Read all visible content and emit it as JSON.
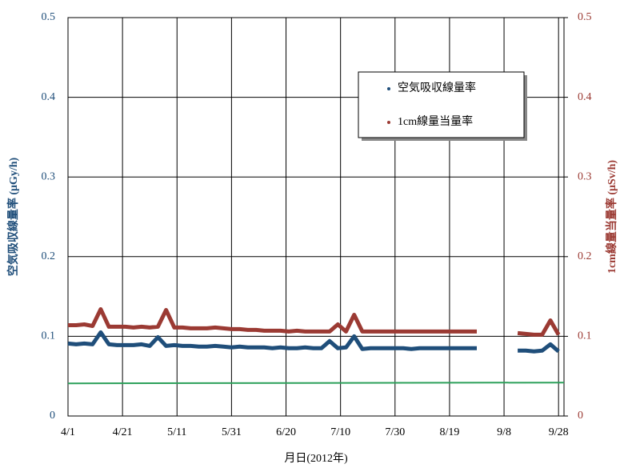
{
  "chart_data": {
    "type": "line",
    "xlabel": "月日(2012年)",
    "ylabel": "空気吸収線量率 (μGy/h)",
    "y2label": "1cm線量当量率 (μSv/h)",
    "x": [
      0,
      3,
      6,
      9,
      12,
      15,
      18,
      21,
      24,
      27,
      30,
      33,
      36,
      39,
      42,
      45,
      48,
      51,
      54,
      57,
      60,
      63,
      66,
      69,
      72,
      75,
      78,
      81,
      84,
      87,
      90,
      93,
      96,
      99,
      102,
      105,
      108,
      111,
      114,
      117,
      120,
      123,
      126,
      129,
      132,
      135,
      138,
      141,
      144,
      147,
      150,
      153,
      156,
      159,
      162,
      165,
      168,
      171,
      174,
      177,
      180
    ],
    "xlim": [
      0,
      182
    ],
    "xticks": [
      {
        "value": 0,
        "label": "4/1"
      },
      {
        "value": 20,
        "label": "4/21"
      },
      {
        "value": 40,
        "label": "5/11"
      },
      {
        "value": 60,
        "label": "5/31"
      },
      {
        "value": 80,
        "label": "6/20"
      },
      {
        "value": 100,
        "label": "7/10"
      },
      {
        "value": 120,
        "label": "7/30"
      },
      {
        "value": 140,
        "label": "8/19"
      },
      {
        "value": 160,
        "label": "9/8"
      },
      {
        "value": 180,
        "label": "9/28"
      }
    ],
    "ylim": [
      0,
      0.5
    ],
    "yticks": [
      0,
      0.1,
      0.2,
      0.3,
      0.4,
      0.5
    ],
    "y2lim": [
      0,
      0.5
    ],
    "y2ticks": [
      0,
      0.1,
      0.2,
      0.3,
      0.4,
      0.5
    ],
    "grid": true,
    "legend": "upper right",
    "series": [
      {
        "name": "空気吸収線量率",
        "color": "#1f4e7a",
        "values": [
          0.091,
          0.09,
          0.091,
          0.09,
          0.105,
          0.09,
          0.089,
          0.089,
          0.089,
          0.09,
          0.088,
          0.099,
          0.088,
          0.089,
          0.088,
          0.088,
          0.087,
          0.087,
          0.088,
          0.087,
          0.086,
          0.087,
          0.086,
          0.086,
          0.086,
          0.085,
          0.086,
          0.085,
          0.085,
          0.086,
          0.085,
          0.085,
          0.094,
          0.085,
          0.086,
          0.1,
          0.084,
          0.085,
          0.085,
          0.085,
          0.085,
          0.085,
          0.084,
          0.085,
          0.085,
          0.085,
          0.085,
          0.085,
          0.085,
          0.085,
          0.085,
          null,
          null,
          null,
          null,
          0.082,
          0.082,
          0.081,
          0.082,
          0.09,
          0.081
        ]
      },
      {
        "name": "1cm線量当量率",
        "color": "#9b3a33",
        "axis": "y2",
        "values": [
          0.114,
          0.114,
          0.115,
          0.113,
          0.134,
          0.112,
          0.112,
          0.112,
          0.111,
          0.112,
          0.111,
          0.112,
          0.133,
          0.111,
          0.111,
          0.11,
          0.11,
          0.11,
          0.111,
          0.11,
          0.109,
          0.109,
          0.108,
          0.108,
          0.107,
          0.107,
          0.107,
          0.106,
          0.107,
          0.106,
          0.106,
          0.106,
          0.106,
          0.115,
          0.106,
          0.127,
          0.106,
          0.106,
          0.106,
          0.106,
          0.106,
          0.106,
          0.106,
          0.106,
          0.106,
          0.106,
          0.106,
          0.106,
          0.106,
          0.106,
          0.106,
          null,
          null,
          null,
          null,
          0.104,
          0.103,
          0.102,
          0.102,
          0.12,
          0.102
        ]
      },
      {
        "color": "#2ca05a",
        "x": [
          0,
          182
        ],
        "values": [
          0.041,
          0.042
        ]
      }
    ]
  }
}
